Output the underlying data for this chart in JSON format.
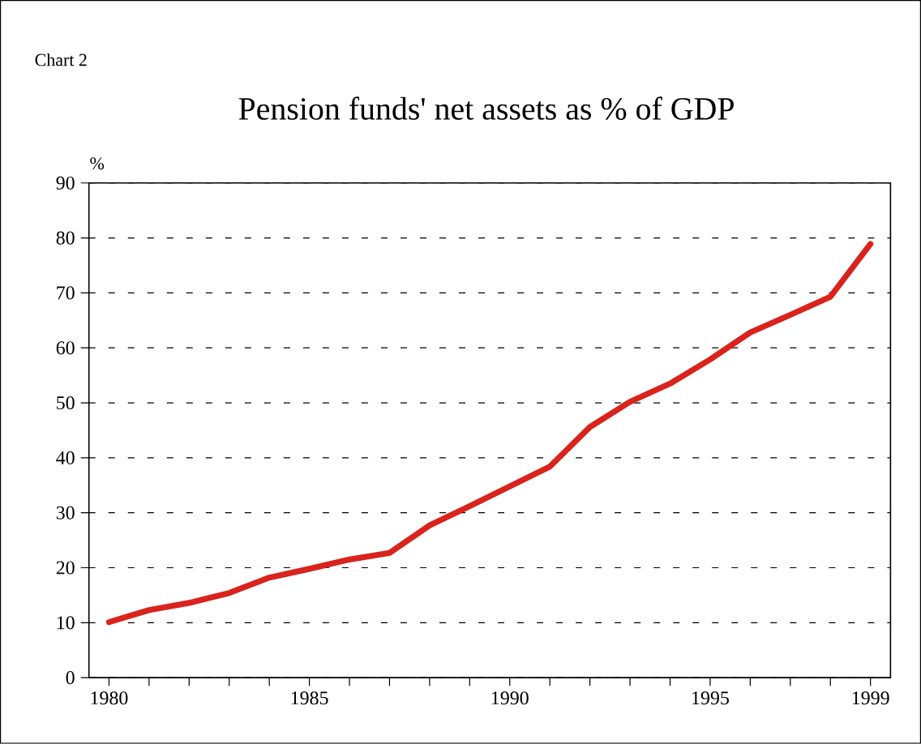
{
  "chart_data": {
    "type": "line",
    "title": "Pension funds' net assets as % of GDP",
    "ylabel": "%",
    "annotations": [
      "Chart 2"
    ],
    "x": [
      1980,
      1981,
      1982,
      1983,
      1984,
      1985,
      1986,
      1987,
      1988,
      1989,
      1990,
      1991,
      1992,
      1993,
      1994,
      1995,
      1996,
      1997,
      1998,
      1999
    ],
    "series": [
      {
        "color": "#d9231c",
        "values": [
          10.1,
          12.3,
          13.6,
          15.4,
          18.2,
          19.8,
          21.5,
          22.7,
          27.7,
          31.2,
          34.8,
          38.4,
          45.6,
          50.2,
          53.5,
          57.9,
          62.8,
          66.0,
          69.3,
          78.9
        ]
      }
    ],
    "xlim": [
      1979.5,
      1999.5
    ],
    "ylim": [
      0,
      90
    ],
    "xticks": [
      1980,
      {
        "value": 1981,
        "label": null
      },
      {
        "value": 1982,
        "label": null
      },
      {
        "value": 1983,
        "label": null
      },
      {
        "value": 1984,
        "label": null
      },
      1985,
      {
        "value": 1986,
        "label": null
      },
      {
        "value": 1987,
        "label": null
      },
      {
        "value": 1988,
        "label": null
      },
      {
        "value": 1989,
        "label": null
      },
      1990,
      {
        "value": 1991,
        "label": null
      },
      {
        "value": 1992,
        "label": null
      },
      {
        "value": 1993,
        "label": null
      },
      {
        "value": 1994,
        "label": null
      },
      1995,
      {
        "value": 1996,
        "label": null
      },
      {
        "value": 1997,
        "label": null
      },
      {
        "value": 1998,
        "label": null
      },
      1999
    ],
    "yticks": [
      0,
      10,
      20,
      30,
      40,
      50,
      60,
      70,
      80,
      90
    ],
    "grid": "y",
    "line_style": "solid"
  }
}
